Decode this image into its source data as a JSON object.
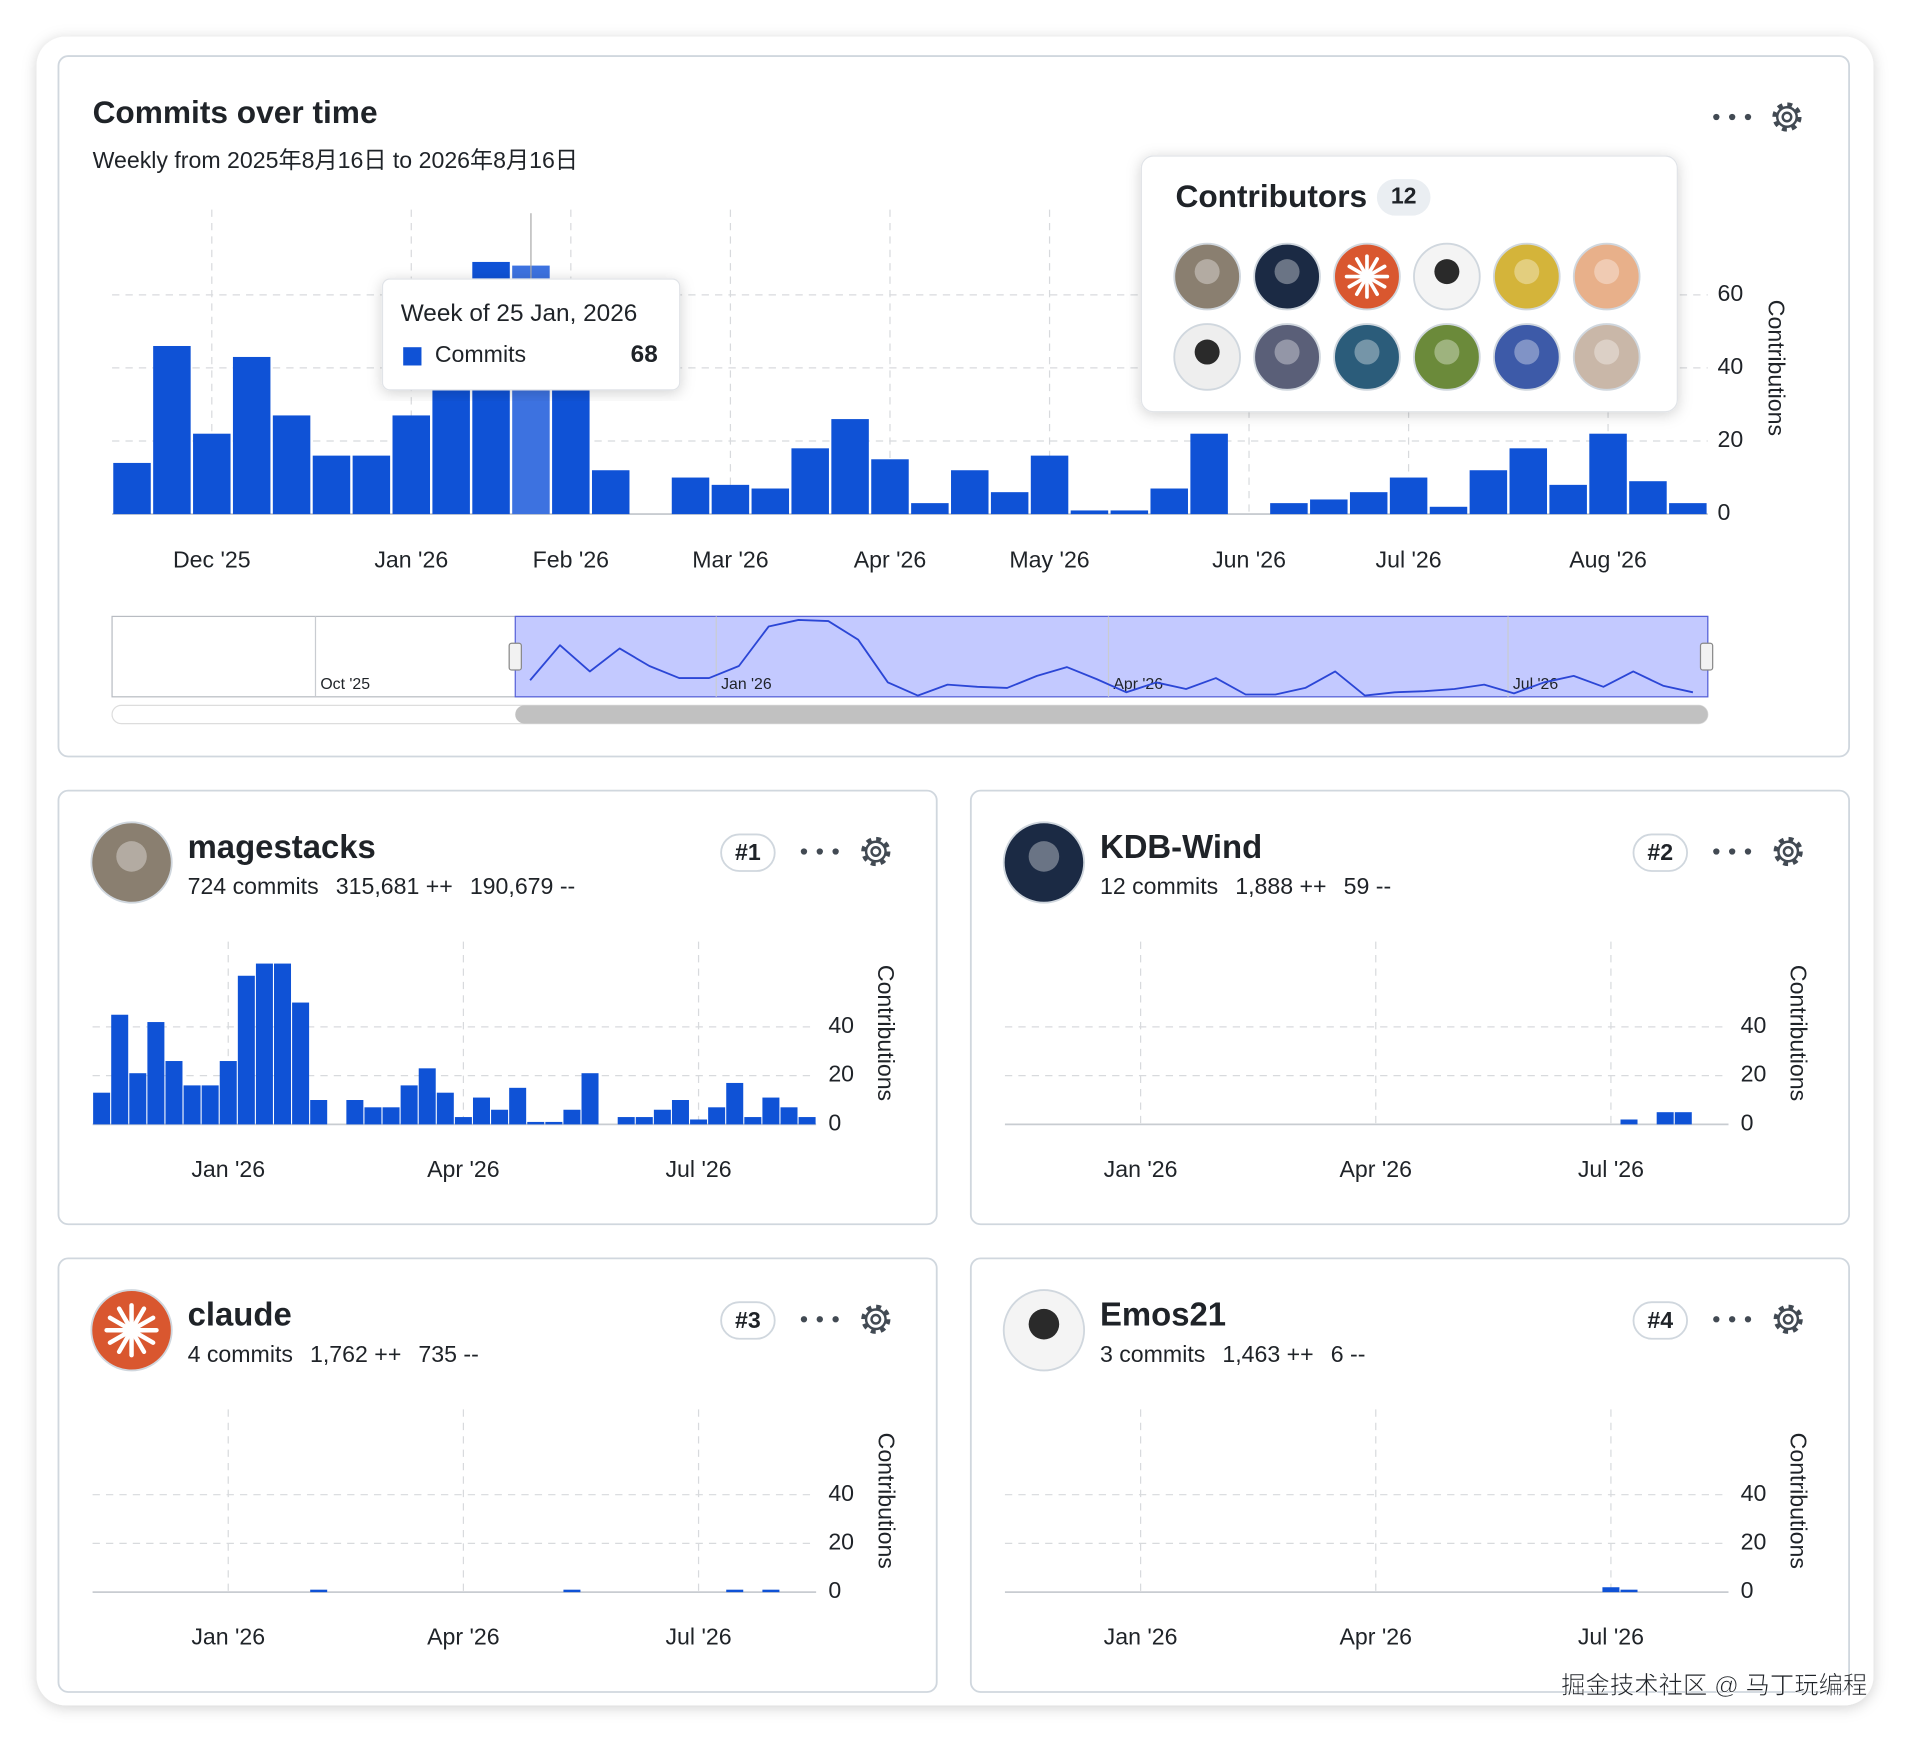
{
  "chart_data": [
    {
      "type": "bar",
      "title": "Commits over time",
      "subtitle": "Weekly from 2025年8月16日 to 2026年8月16日",
      "ylabel": "Contributions",
      "categories": [
        null,
        null,
        "Dec '25",
        null,
        null,
        null,
        null,
        "Jan '26",
        null,
        null,
        null,
        "Feb '26",
        null,
        null,
        null,
        "Mar '26",
        null,
        null,
        null,
        "Apr '26",
        null,
        null,
        null,
        "May '26",
        null,
        null,
        null,
        null,
        "Jun '26",
        null,
        null,
        null,
        "Jul '26",
        null,
        null,
        null,
        null,
        "Aug '26",
        null,
        null
      ],
      "series": [
        {
          "name": "Commits",
          "color": "#0f52d6",
          "values": [
            14,
            46,
            22,
            43,
            27,
            16,
            16,
            27,
            63,
            69,
            68,
            51,
            12,
            0,
            10,
            8,
            7,
            18,
            26,
            15,
            3,
            12,
            6,
            16,
            1,
            1,
            7,
            22,
            0,
            3,
            4,
            6,
            10,
            2,
            12,
            18,
            8,
            22,
            9,
            3
          ]
        }
      ],
      "ylim": [
        0,
        80
      ],
      "yticks": [
        0,
        20,
        40,
        60
      ],
      "grid": true,
      "tooltip": {
        "title": "Week of 25 Jan, 2026"
      },
      "navigator": {
        "labels": [
          "Oct '25",
          "Jan '26",
          "Apr '26",
          "Jul '26"
        ]
      },
      "contributors": {
        "title": "Contributors",
        "count": 12
      }
    },
    {
      "type": "bar",
      "title": "magestacks",
      "summary": "724 commits",
      "additions": "315,681 ++",
      "deletions": "190,679 --",
      "rank": "#1",
      "ylabel": "Contributions",
      "categories": [
        null,
        null,
        null,
        null,
        null,
        null,
        null,
        "Jan '26",
        null,
        null,
        null,
        null,
        null,
        null,
        null,
        null,
        null,
        null,
        null,
        null,
        "Apr '26",
        null,
        null,
        null,
        null,
        null,
        null,
        null,
        null,
        null,
        null,
        null,
        null,
        "Jul '26",
        null,
        null,
        null,
        null,
        null,
        null
      ],
      "values": [
        13,
        45,
        21,
        42,
        26,
        16,
        16,
        26,
        61,
        66,
        66,
        50,
        10,
        0,
        10,
        7,
        7,
        16,
        23,
        13,
        3,
        11,
        6,
        15,
        1,
        1,
        6,
        21,
        0,
        3,
        3,
        6,
        10,
        2,
        7,
        17,
        3,
        11,
        7,
        3
      ],
      "color": "#0f52d6",
      "ylim": [
        0,
        75
      ],
      "yticks": [
        0,
        20,
        40
      ],
      "grid": true
    },
    {
      "type": "bar",
      "title": "KDB-Wind",
      "summary": "12 commits",
      "additions": "1,888 ++",
      "deletions": "59 --",
      "rank": "#2",
      "ylabel": "Contributions",
      "categories": [
        null,
        null,
        null,
        null,
        null,
        null,
        null,
        "Jan '26",
        null,
        null,
        null,
        null,
        null,
        null,
        null,
        null,
        null,
        null,
        null,
        null,
        "Apr '26",
        null,
        null,
        null,
        null,
        null,
        null,
        null,
        null,
        null,
        null,
        null,
        null,
        "Jul '26",
        null,
        null,
        null,
        null,
        null,
        null
      ],
      "values": [
        0,
        0,
        0,
        0,
        0,
        0,
        0,
        0,
        0,
        0,
        0,
        0,
        0,
        0,
        0,
        0,
        0,
        0,
        0,
        0,
        0,
        0,
        0,
        0,
        0,
        0,
        0,
        0,
        0,
        0,
        0,
        0,
        0,
        0,
        2,
        0,
        5,
        5,
        0,
        0
      ],
      "color": "#0f52d6",
      "ylim": [
        0,
        75
      ],
      "yticks": [
        0,
        20,
        40
      ],
      "grid": true
    },
    {
      "type": "bar",
      "title": "claude",
      "summary": "4 commits",
      "additions": "1,762 ++",
      "deletions": "735 --",
      "rank": "#3",
      "ylabel": "Contributions",
      "categories": [
        null,
        null,
        null,
        null,
        null,
        null,
        null,
        "Jan '26",
        null,
        null,
        null,
        null,
        null,
        null,
        null,
        null,
        null,
        null,
        null,
        null,
        "Apr '26",
        null,
        null,
        null,
        null,
        null,
        null,
        null,
        null,
        null,
        null,
        null,
        null,
        "Jul '26",
        null,
        null,
        null,
        null,
        null,
        null
      ],
      "values": [
        0,
        0,
        0,
        0,
        0,
        0,
        0,
        0,
        0,
        0,
        0,
        0,
        1,
        0,
        0,
        0,
        0,
        0,
        0,
        0,
        0,
        0,
        0,
        0,
        0,
        0,
        1,
        0,
        0,
        0,
        0,
        0,
        0,
        0,
        0,
        1,
        0,
        1,
        0,
        0
      ],
      "color": "#0f52d6",
      "ylim": [
        0,
        75
      ],
      "yticks": [
        0,
        20,
        40
      ],
      "grid": true
    },
    {
      "type": "bar",
      "title": "Emos21",
      "summary": "3 commits",
      "additions": "1,463 ++",
      "deletions": "6 --",
      "rank": "#4",
      "ylabel": "Contributions",
      "categories": [
        null,
        null,
        null,
        null,
        null,
        null,
        null,
        "Jan '26",
        null,
        null,
        null,
        null,
        null,
        null,
        null,
        null,
        null,
        null,
        null,
        null,
        "Apr '26",
        null,
        null,
        null,
        null,
        null,
        null,
        null,
        null,
        null,
        null,
        null,
        null,
        "Jul '26",
        null,
        null,
        null,
        null,
        null,
        null
      ],
      "values": [
        0,
        0,
        0,
        0,
        0,
        0,
        0,
        0,
        0,
        0,
        0,
        0,
        0,
        0,
        0,
        0,
        0,
        0,
        0,
        0,
        0,
        0,
        0,
        0,
        0,
        0,
        0,
        0,
        0,
        0,
        0,
        0,
        0,
        2,
        1,
        0,
        0,
        0,
        0,
        0
      ],
      "color": "#0f52d6",
      "ylim": [
        0,
        75
      ],
      "yticks": [
        0,
        20,
        40
      ],
      "grid": true
    }
  ],
  "watermark": "掘金技术社区 @ 马丁玩编程"
}
